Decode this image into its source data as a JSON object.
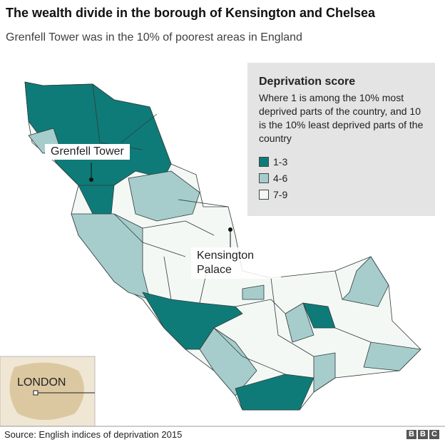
{
  "header": {
    "title": "The wealth divide in the borough of Kensington and Chelsea",
    "subtitle": "Grenfell Tower was in the 10% of poorest areas in England"
  },
  "legend": {
    "title": "Deprivation score",
    "description": "Where 1 is among the 10% most deprived parts of the country, and 10 is the 10% least deprived parts of the country",
    "items": [
      {
        "label": "1-3",
        "color": "#0f7b78"
      },
      {
        "label": "4-6",
        "color": "#a6cdcc"
      },
      {
        "label": "7-9",
        "color": "#f4f8f4"
      }
    ]
  },
  "labels": {
    "grenfell": "Grenfell Tower",
    "palace": "Kensington Palace"
  },
  "inset": {
    "label": "LONDON"
  },
  "footer": {
    "source": "Source: English indices of deprivation 2015",
    "logo": [
      "B",
      "B",
      "C"
    ]
  }
}
